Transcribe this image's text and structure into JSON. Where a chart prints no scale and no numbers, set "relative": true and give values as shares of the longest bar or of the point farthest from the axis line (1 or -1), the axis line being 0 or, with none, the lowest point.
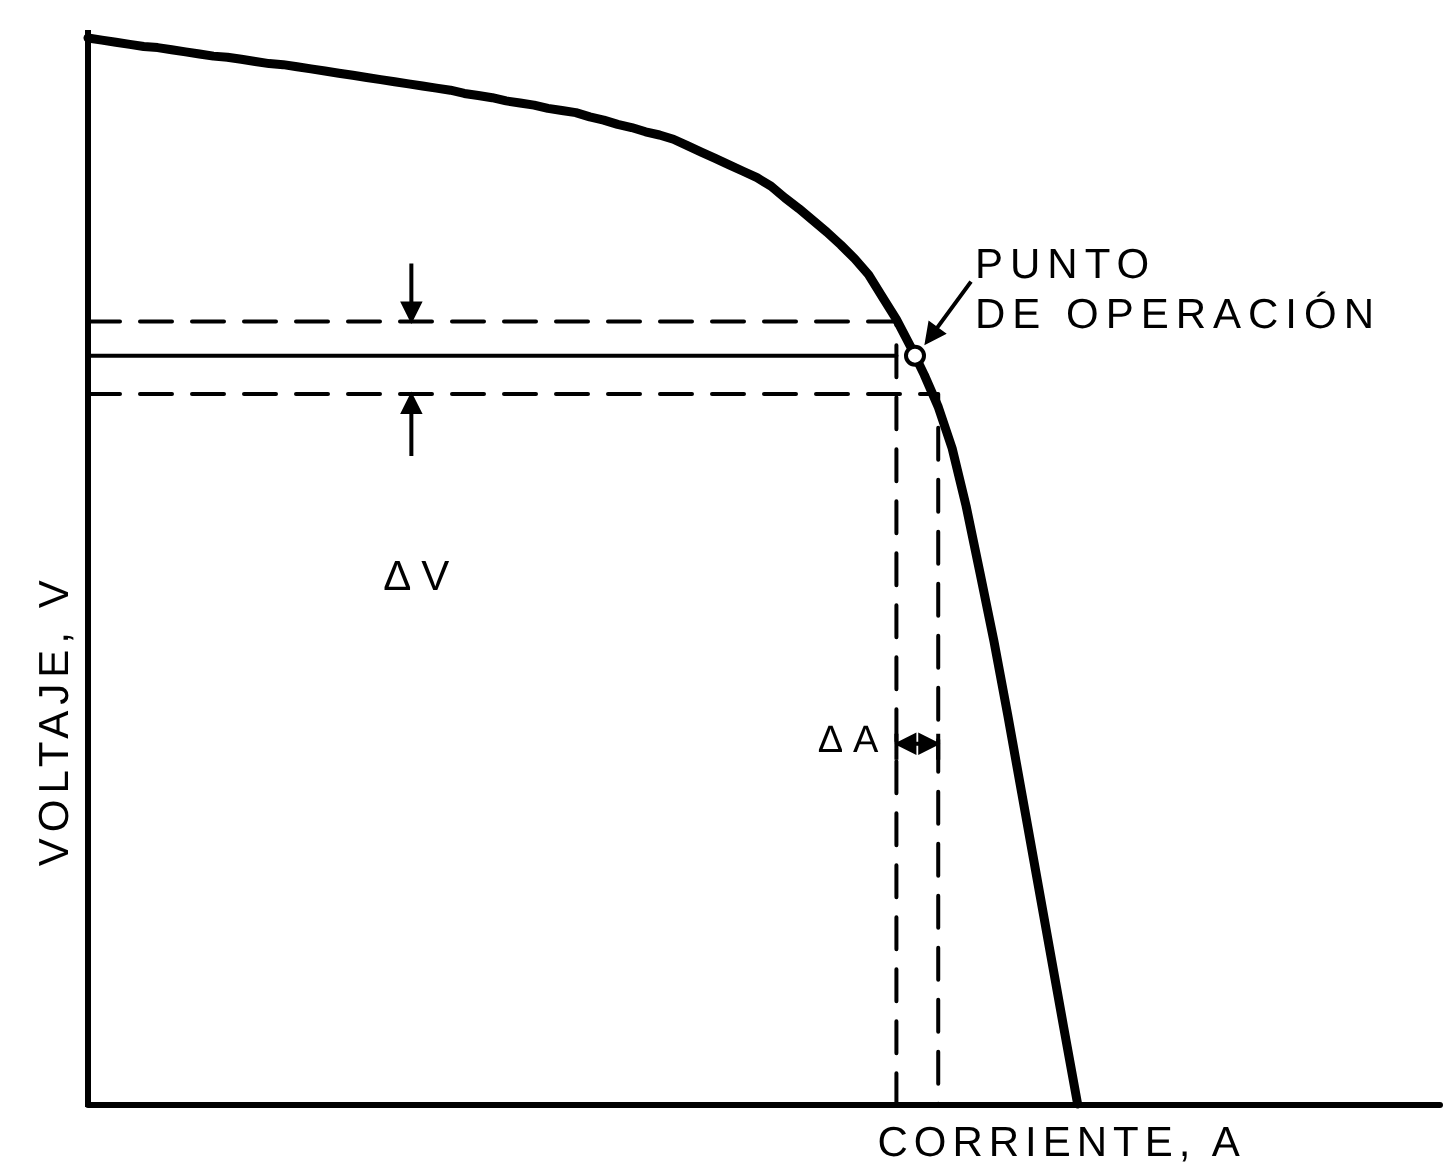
{
  "chart_data": {
    "type": "line",
    "xlabel": "CORRIENTE, A",
    "ylabel": "VOLTAJE, V",
    "relative": true,
    "marker": "none",
    "line_style": "solid",
    "categories": [
      null,
      null,
      null,
      null,
      null,
      null,
      null,
      null,
      null,
      null,
      null,
      null,
      null,
      null,
      null,
      null,
      null,
      null,
      null,
      null,
      null,
      null,
      null,
      null,
      null,
      null,
      null,
      null,
      null,
      null,
      null,
      null,
      null,
      null,
      null,
      null,
      null,
      null,
      null,
      null,
      null,
      null,
      null,
      null,
      null,
      null,
      null,
      null,
      null,
      null,
      null,
      null,
      null,
      null,
      null,
      null,
      null,
      null,
      null,
      null,
      null,
      null,
      null,
      null,
      null,
      null,
      null,
      null,
      null,
      null,
      null,
      null,
      null,
      null,
      null,
      null,
      null,
      null,
      null,
      null,
      null,
      null,
      null,
      null,
      null,
      null,
      null,
      null,
      null,
      null,
      null,
      null,
      null,
      null,
      null,
      null,
      null,
      null
    ],
    "series": [
      {
        "color": "#000000",
        "values": [
          1.0,
          0.998,
          0.996,
          0.994,
          0.992,
          0.991,
          0.989,
          0.987,
          0.985,
          0.983,
          0.982,
          0.98,
          0.978,
          0.976,
          0.975,
          0.973,
          0.971,
          0.969,
          0.967,
          0.965,
          0.963,
          0.961,
          0.959,
          0.957,
          0.955,
          0.953,
          0.951,
          0.948,
          0.946,
          0.944,
          0.941,
          0.939,
          0.937,
          0.934,
          0.932,
          0.93,
          0.926,
          0.923,
          0.919,
          0.916,
          0.912,
          0.909,
          0.905,
          0.899,
          0.893,
          0.887,
          0.881,
          0.875,
          0.869,
          0.861,
          0.85,
          0.84,
          0.829,
          0.818,
          0.806,
          0.793,
          0.778,
          0.757,
          0.736,
          0.711,
          0.684,
          0.654,
          0.615,
          0.561,
          0.498,
          0.434,
          0.364,
          0.291,
          0.218,
          0.145,
          0.072,
          0,
          null,
          null,
          null,
          null,
          null,
          null,
          null,
          null,
          null,
          null,
          null,
          null,
          null,
          null,
          null,
          null,
          null,
          null,
          null,
          null,
          null,
          null,
          null,
          null,
          null,
          null
        ]
      },
      {
        "type": "step",
        "color": "#000000",
        "line_style": "dashed",
        "values": [
          0.734,
          0.734,
          0.734,
          0.734,
          0.734,
          0.734,
          0.734,
          0.734,
          0.734,
          0.734,
          0.734,
          0.734,
          0.734,
          0.734,
          0.734,
          0.734,
          0.734,
          0.734,
          0.734,
          0.734,
          0.734,
          0.734,
          0.734,
          0.734,
          0.734,
          0.734,
          0.734,
          0.734,
          0.734,
          0.734,
          0.734,
          0.734,
          0.734,
          0.734,
          0.734,
          0.734,
          0.734,
          0.734,
          0.734,
          0.734,
          0.734,
          0.734,
          0.734,
          0.734,
          0.734,
          0.734,
          0.734,
          0.734,
          0.734,
          0.734,
          0.734,
          0.734,
          0.734,
          0.734,
          0.734,
          0.734,
          0.734,
          0.734,
          0.734,
          0,
          null,
          null,
          null,
          null,
          null,
          null,
          null,
          null,
          null,
          null,
          null,
          null,
          null,
          null,
          null,
          null,
          null,
          null,
          null,
          null,
          null,
          null,
          null,
          null,
          null,
          null,
          null,
          null,
          null,
          null,
          null,
          null,
          null,
          null,
          null,
          null,
          null,
          null
        ]
      },
      {
        "color": "#000000",
        "values": [
          0.702,
          0.702,
          0.702,
          0.702,
          0.702,
          0.702,
          0.702,
          0.702,
          0.702,
          0.702,
          0.702,
          0.702,
          0.702,
          0.702,
          0.702,
          0.702,
          0.702,
          0.702,
          0.702,
          0.702,
          0.702,
          0.702,
          0.702,
          0.702,
          0.702,
          0.702,
          0.702,
          0.702,
          0.702,
          0.702,
          0.702,
          0.702,
          0.702,
          0.702,
          0.702,
          0.702,
          0.702,
          0.702,
          0.702,
          0.702,
          0.702,
          0.702,
          0.702,
          0.702,
          0.702,
          0.702,
          0.702,
          0.702,
          0.702,
          0.702,
          0.702,
          0.702,
          0.702,
          0.702,
          0.702,
          0.702,
          0.702,
          0.702,
          0.702,
          null,
          null,
          null,
          null,
          null,
          null,
          null,
          null,
          null,
          null,
          null,
          null,
          null,
          null,
          null,
          null,
          null,
          null,
          null,
          null,
          null,
          null,
          null,
          null,
          null,
          null,
          null,
          null,
          null,
          null,
          null,
          null,
          null,
          null,
          null,
          null,
          null,
          null,
          null
        ]
      },
      {
        "type": "step",
        "color": "#000000",
        "line_style": "dashed",
        "values": [
          0.666,
          0.666,
          0.666,
          0.666,
          0.666,
          0.666,
          0.666,
          0.666,
          0.666,
          0.666,
          0.666,
          0.666,
          0.666,
          0.666,
          0.666,
          0.666,
          0.666,
          0.666,
          0.666,
          0.666,
          0.666,
          0.666,
          0.666,
          0.666,
          0.666,
          0.666,
          0.666,
          0.666,
          0.666,
          0.666,
          0.666,
          0.666,
          0.666,
          0.666,
          0.666,
          0.666,
          0.666,
          0.666,
          0.666,
          0.666,
          0.666,
          0.666,
          0.666,
          0.666,
          0.666,
          0.666,
          0.666,
          0.666,
          0.666,
          0.666,
          0.666,
          0.666,
          0.666,
          0.666,
          0.666,
          0.666,
          0.666,
          0.666,
          0.666,
          0.666,
          0.666,
          0.666,
          0,
          null,
          null,
          null,
          null,
          null,
          null,
          null,
          null,
          null,
          null,
          null,
          null,
          null,
          null,
          null,
          null,
          null,
          null,
          null,
          null,
          null,
          null,
          null,
          null,
          null,
          null,
          null,
          null,
          null,
          null,
          null,
          null,
          null,
          null,
          null
        ]
      }
    ],
    "annotations": [
      "PUNTO DE OPERACIÓN",
      "ΔV",
      "ΔA"
    ]
  }
}
